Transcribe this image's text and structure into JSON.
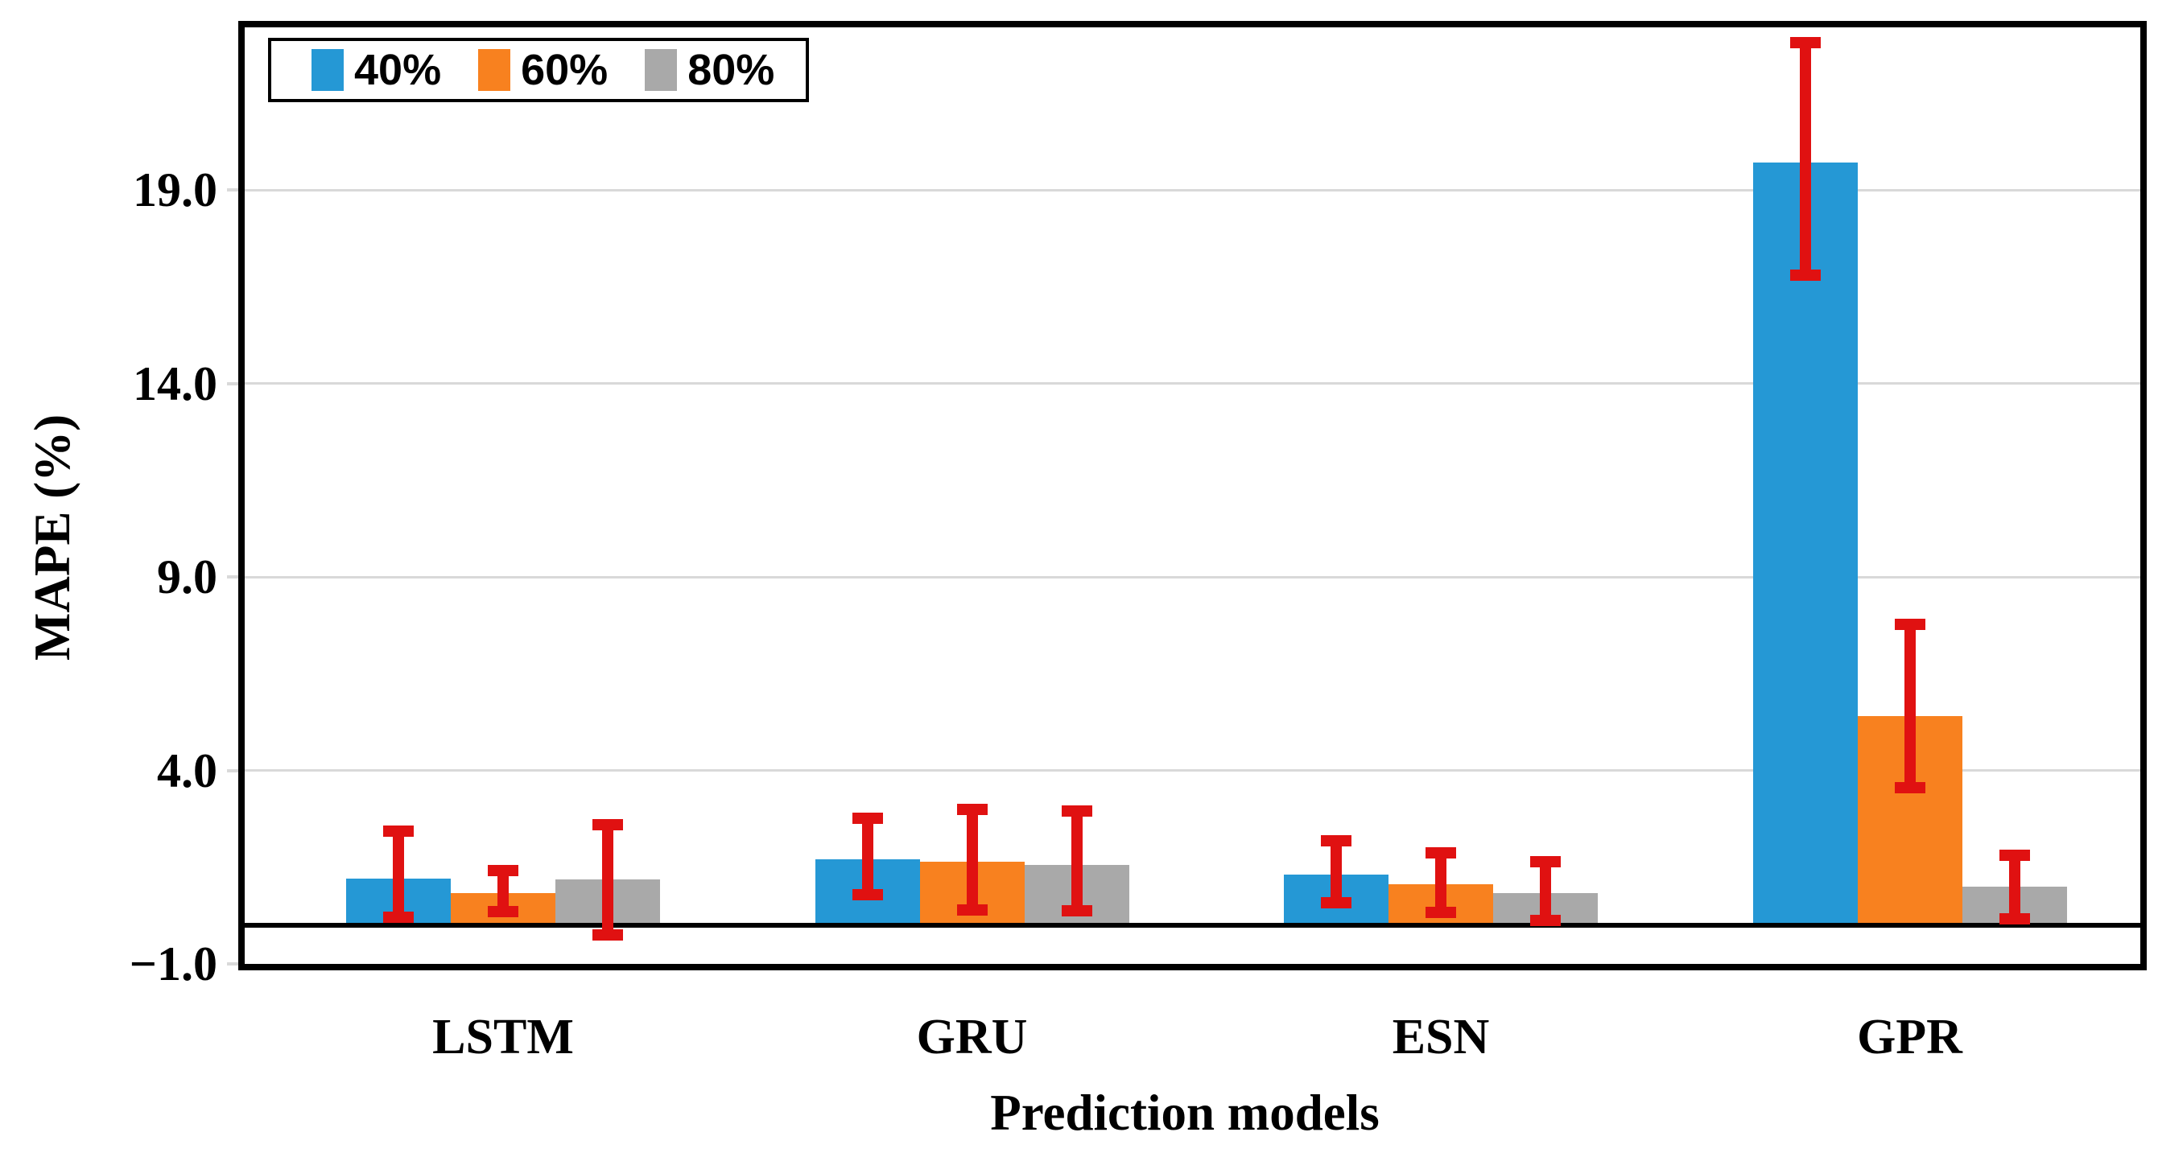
{
  "figure": {
    "background": "#ffffff"
  },
  "chart_data": {
    "type": "bar",
    "title": "",
    "xlabel": "Prediction models",
    "ylabel": "MAPE (%)",
    "categories": [
      "LSTM",
      "GRU",
      "ESN",
      "GPR"
    ],
    "series": [
      {
        "name": "40%",
        "color": "#2598D5",
        "values": [
          1.2,
          1.7,
          1.3,
          19.7
        ],
        "err_low": [
          0.2,
          0.78,
          0.58,
          16.8
        ],
        "err_high": [
          2.43,
          2.76,
          2.18,
          22.8
        ]
      },
      {
        "name": "60%",
        "color": "#F8811F",
        "values": [
          0.83,
          1.63,
          1.05,
          5.4
        ],
        "err_low": [
          0.35,
          0.39,
          0.33,
          3.56
        ],
        "err_high": [
          1.41,
          3.0,
          1.87,
          7.78
        ]
      },
      {
        "name": "80%",
        "color": "#A9A9A9",
        "values": [
          1.19,
          1.56,
          0.82,
          0.99
        ],
        "err_low": [
          -0.25,
          0.37,
          0.12,
          0.16
        ],
        "err_high": [
          2.59,
          2.94,
          1.63,
          1.81
        ]
      }
    ],
    "error_bar_color": "#E01111",
    "gridline_color": "#D9D9D9",
    "axis_color": "#000000",
    "yticks": [
      -1.0,
      4.0,
      9.0,
      14.0,
      19.0
    ],
    "ytick_labels": [
      "−1.0",
      "4.0",
      "9.0",
      "14.0",
      "19.0"
    ],
    "ylim": [
      -1.0,
      23.2
    ],
    "grid": "horizontal",
    "zero_line": true,
    "legend_position": "top-left-inside"
  }
}
